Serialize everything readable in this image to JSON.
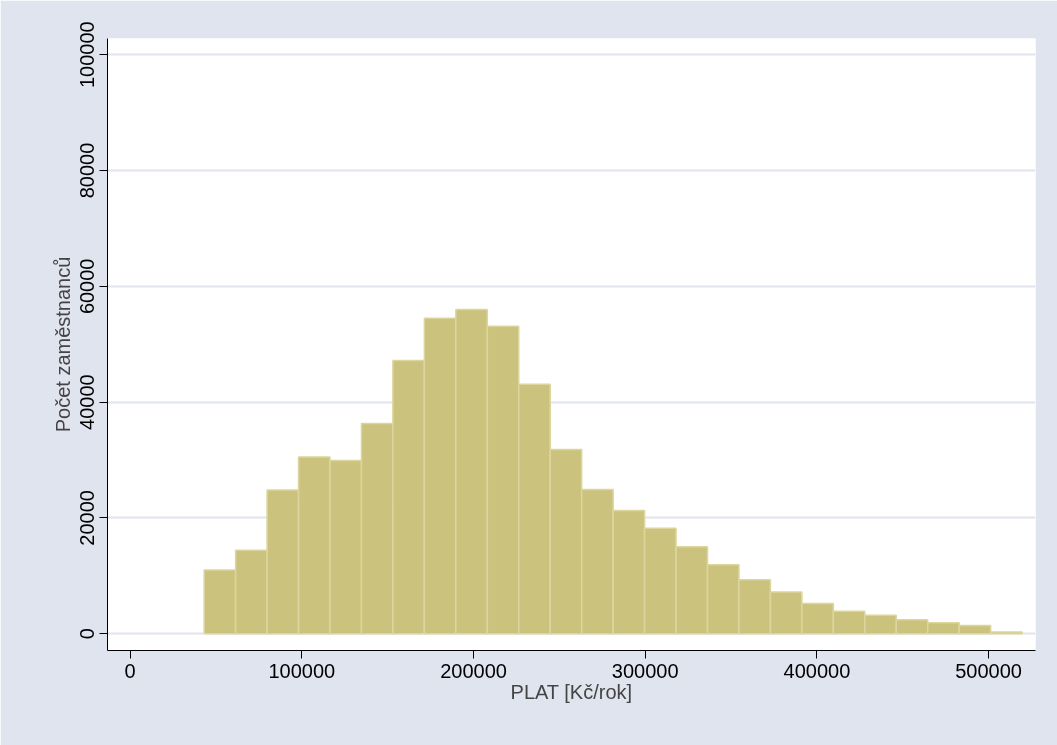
{
  "chart_data": {
    "type": "histogram",
    "xlabel": "PLAT [Kč/rok]",
    "ylabel": "Počet zaměstnanců",
    "bins": [
      43100,
      61423,
      79746,
      98069,
      116392,
      134715,
      153038,
      171361,
      189684,
      208007,
      226330,
      244653,
      262976,
      281299,
      299622,
      317945,
      336268,
      354591,
      372914,
      391237,
      409560,
      427883,
      446206,
      464529,
      482852,
      501175,
      519498
    ],
    "values": [
      11000,
      14400,
      24800,
      30500,
      29900,
      36300,
      47200,
      54500,
      56000,
      53100,
      43100,
      31800,
      24900,
      21300,
      18200,
      15000,
      11900,
      9300,
      7200,
      5200,
      3900,
      3200,
      2400,
      1900,
      1400,
      300
    ],
    "color": "#cbc37d",
    "xlim": [
      -13200,
      527300
    ],
    "ylim": [
      -2900,
      102800
    ],
    "xticks": [
      0,
      100000,
      200000,
      300000,
      400000,
      500000
    ],
    "yticks": [
      0,
      20000,
      40000,
      60000,
      80000,
      100000
    ],
    "grid": "y"
  }
}
